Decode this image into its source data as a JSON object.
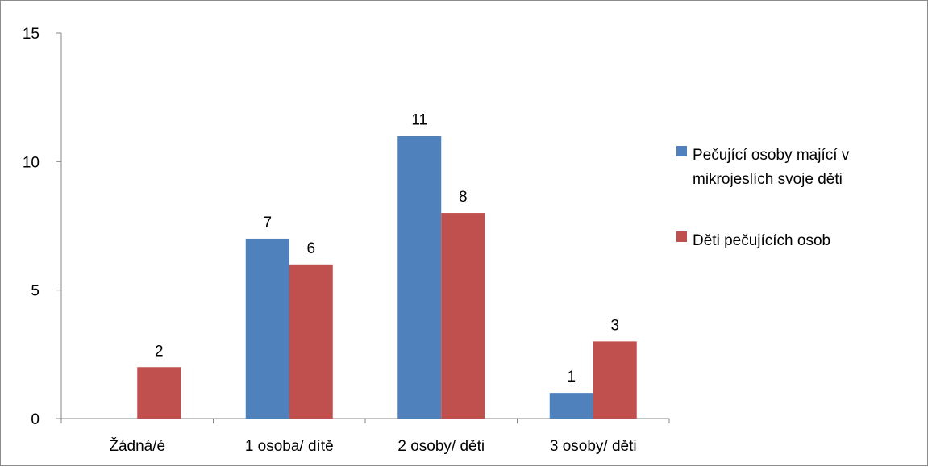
{
  "chart_data": {
    "type": "bar",
    "title": "",
    "xlabel": "",
    "ylabel": "",
    "ylim": [
      0,
      15
    ],
    "yticks": [
      0,
      5,
      10,
      15
    ],
    "grid": false,
    "legend_position": "right",
    "categories": [
      "Žádná/é",
      "1 osoba/ dítě",
      "2 osoby/ děti",
      "3 osoby/ děti"
    ],
    "series": [
      {
        "name": "Pečující osoby mající v mikrojeslích svoje děti",
        "legend_lines": [
          "Pečující osoby mající v",
          "mikrojeslích svoje děti"
        ],
        "color": "#4F81BD",
        "values": [
          0,
          7,
          11,
          1
        ],
        "labels": [
          "",
          "7",
          "11",
          "1"
        ]
      },
      {
        "name": "Děti  pečujících osob",
        "legend_lines": [
          "Děti  pečujících osob"
        ],
        "color": "#C0504D",
        "values": [
          2,
          6,
          8,
          3
        ],
        "labels": [
          "2",
          "6",
          "8",
          "3"
        ]
      }
    ]
  }
}
